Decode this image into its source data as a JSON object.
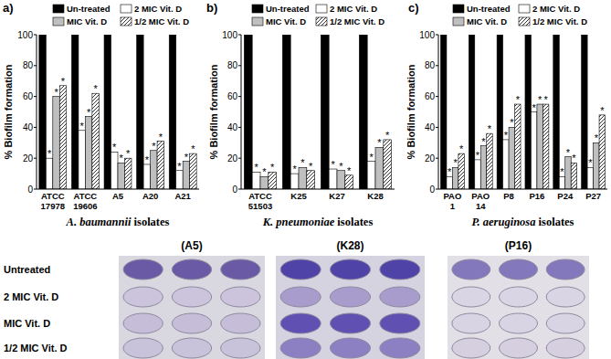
{
  "chart_data": [
    {
      "type": "bar",
      "title": "a)",
      "x_label": "A. baumannii isolates",
      "y_label": "% Biofilm formation",
      "categories": [
        "ATCC 17978",
        "ATCC 19606",
        "A5",
        "A20",
        "A21"
      ],
      "series": [
        {
          "name": "Un-treated",
          "color": "#000000",
          "values": [
            100,
            100,
            100,
            100,
            100
          ]
        },
        {
          "name": "2 MIC Vit. D",
          "color": "#ffffff",
          "values": [
            20,
            38,
            24,
            16,
            12
          ],
          "annotations": [
            "*",
            "*",
            "*",
            "*",
            "*"
          ]
        },
        {
          "name": "MIC Vit. D",
          "color": "#bfbfbf",
          "values": [
            60,
            47,
            17,
            25,
            18
          ],
          "annotations": [
            "*",
            "*",
            "*",
            "*",
            "*"
          ]
        },
        {
          "name": "1/2 MIC Vit. D",
          "color": "#ffffff",
          "marker": "hatch",
          "values": [
            67,
            62,
            20,
            31,
            23
          ],
          "annotations": [
            "*",
            "*",
            "*",
            "*",
            "*"
          ]
        }
      ],
      "ylim": [
        0,
        100
      ],
      "yticks": [
        0,
        20,
        40,
        60,
        80,
        100
      ],
      "grid": false,
      "legend": "top",
      "data_labels": false
    },
    {
      "type": "bar",
      "title": "b)",
      "x_label": "K. pneumoniae isolates",
      "y_label": "% Biofilm formation",
      "categories": [
        "ATCC 51503",
        "K25",
        "K27",
        "K28"
      ],
      "series": [
        {
          "name": "Un-treated",
          "color": "#000000",
          "values": [
            100,
            100,
            100,
            100
          ]
        },
        {
          "name": "2 MIC Vit. D",
          "color": "#ffffff",
          "values": [
            11,
            10,
            13,
            18
          ],
          "annotations": [
            "*",
            "*",
            "*",
            "*"
          ]
        },
        {
          "name": "MIC Vit. D",
          "color": "#bfbfbf",
          "values": [
            8,
            14,
            12,
            27
          ],
          "annotations": [
            "*",
            "*",
            "*",
            "*"
          ]
        },
        {
          "name": "1/2 MIC Vit. D",
          "color": "#ffffff",
          "marker": "hatch",
          "values": [
            11,
            12,
            9,
            32
          ],
          "annotations": [
            "*",
            "*",
            "*",
            "*"
          ]
        }
      ],
      "ylim": [
        0,
        100
      ],
      "yticks": [
        0,
        20,
        40,
        60,
        80,
        100
      ],
      "grid": false,
      "legend": "top",
      "data_labels": false
    },
    {
      "type": "bar",
      "title": "c)",
      "x_label": "P. aeruginosa isolates",
      "y_label": "% Biofilm formation",
      "categories": [
        "PAO 1",
        "PAO 14",
        "P8",
        "P16",
        "P24",
        "P27"
      ],
      "series": [
        {
          "name": "Un-treated",
          "color": "#000000",
          "values": [
            100,
            100,
            100,
            100,
            100,
            100
          ]
        },
        {
          "name": "2 MIC Vit. D",
          "color": "#ffffff",
          "values": [
            8,
            19,
            32,
            50,
            8,
            14
          ],
          "annotations": [
            "*",
            "*",
            "*",
            "*",
            "*",
            "*"
          ]
        },
        {
          "name": "MIC Vit. D",
          "color": "#bfbfbf",
          "values": [
            14,
            28,
            40,
            55,
            21,
            30
          ],
          "annotations": [
            "*",
            "*",
            "*",
            "*",
            "*",
            "*"
          ]
        },
        {
          "name": "1/2 MIC Vit. D",
          "color": "#ffffff",
          "marker": "hatch",
          "values": [
            23,
            36,
            55,
            55,
            17,
            48
          ],
          "annotations": [
            "*",
            "*",
            "*",
            "*",
            "*",
            "*"
          ]
        }
      ],
      "ylim": [
        0,
        100
      ],
      "yticks": [
        0,
        20,
        40,
        60,
        80,
        100
      ],
      "grid": false,
      "legend": "top",
      "data_labels": false
    }
  ],
  "plates": {
    "columns": [
      "(A5)",
      "(K28)",
      "(P16)"
    ],
    "rows": [
      "Untreated",
      "2 MIC Vit. D",
      "MIC Vit. D",
      "1/2 MIC Vit. D"
    ]
  }
}
